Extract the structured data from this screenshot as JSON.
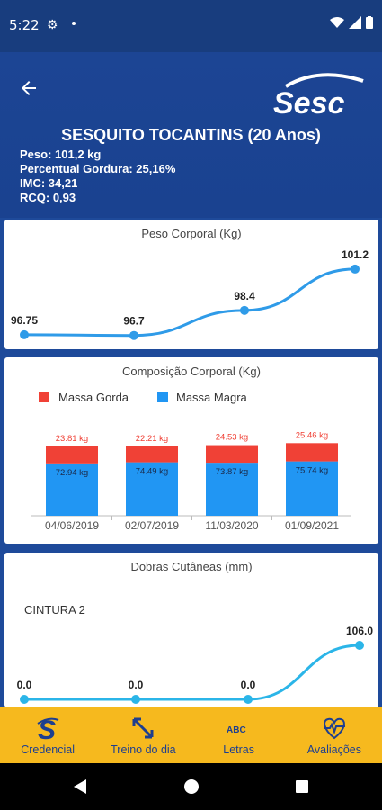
{
  "status": {
    "time": "5:22"
  },
  "header": {
    "logo_text": "Sesc",
    "title": "SESQUITO TOCANTINS (20 Anos)",
    "info": [
      "Peso: 101,2 kg",
      "Percentual Gordura: 25,16%",
      "IMC: 34,21",
      "RCQ: 0,93"
    ]
  },
  "colors": {
    "header_bg": "#1c4594",
    "accent_blue": "#2f9be8",
    "fat_red": "#f04136",
    "lean_blue": "#2196f3",
    "nav_bg": "#f6b91e",
    "nav_fg": "#1e3f8f",
    "cyan": "#2bb5e8"
  },
  "chart_data": [
    {
      "type": "line",
      "title": "Peso Corporal (Kg)",
      "values": [
        96.75,
        96.7,
        98.4,
        101.2
      ],
      "labels": [
        "96.75",
        "96.7",
        "98.4",
        "101.2"
      ]
    },
    {
      "type": "bar",
      "title": "Composição Corporal (Kg)",
      "categories": [
        "04/06/2019",
        "02/07/2019",
        "11/03/2020",
        "01/09/2021"
      ],
      "series": [
        {
          "name": "Massa Gorda",
          "values": [
            23.81,
            22.21,
            24.53,
            25.46
          ],
          "labels": [
            "23.81 kg",
            "22.21 kg",
            "24.53 kg",
            "25.46 kg"
          ]
        },
        {
          "name": "Massa Magra",
          "values": [
            72.94,
            74.49,
            73.87,
            75.74
          ],
          "labels": [
            "72.94 kg",
            "74.49 kg",
            "73.87 kg",
            "75.74 kg"
          ]
        }
      ]
    },
    {
      "type": "line",
      "title": "Dobras Cutâneas (mm)",
      "series_label": "CINTURA 2",
      "values": [
        0.0,
        0.0,
        0.0,
        106.0
      ],
      "labels": [
        "0.0",
        "0.0",
        "0.0",
        "106.0"
      ]
    }
  ],
  "nav": [
    {
      "label": "Credencial",
      "icon": "sesc-s-icon"
    },
    {
      "label": "Treino do dia",
      "icon": "resize-arrows-icon"
    },
    {
      "label": "Letras",
      "icon": "abc-icon"
    },
    {
      "label": "Avaliações",
      "icon": "heart-pulse-icon"
    }
  ]
}
